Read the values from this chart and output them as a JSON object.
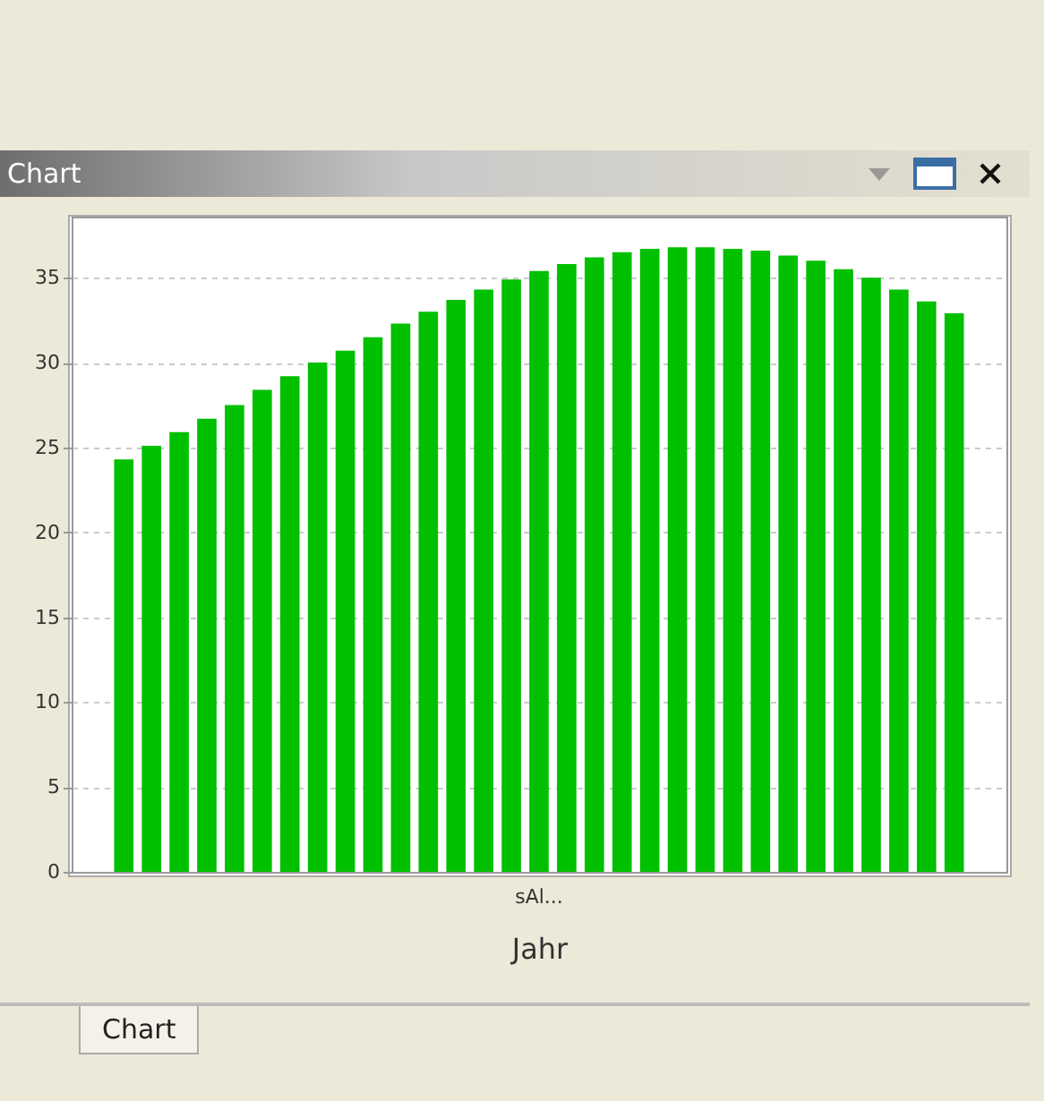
{
  "chart_data": {
    "type": "bar",
    "title": "Chart",
    "xlabel": "Jahr",
    "categories": [
      "sAl..."
    ],
    "series": [
      {
        "color": "#00c000",
        "values": [
          24.3
        ]
      },
      {
        "color": "#00c000",
        "values": [
          25.1
        ]
      },
      {
        "color": "#00c000",
        "values": [
          25.9
        ]
      },
      {
        "color": "#00c000",
        "values": [
          26.7
        ]
      },
      {
        "color": "#00c000",
        "values": [
          27.5
        ]
      },
      {
        "color": "#00c000",
        "values": [
          28.4
        ]
      },
      {
        "color": "#00c000",
        "values": [
          29.2
        ]
      },
      {
        "color": "#00c000",
        "values": [
          30.0
        ]
      },
      {
        "color": "#00c000",
        "values": [
          30.7
        ]
      },
      {
        "color": "#00c000",
        "values": [
          31.5
        ]
      },
      {
        "color": "#00c000",
        "values": [
          32.3
        ]
      },
      {
        "color": "#00c000",
        "values": [
          33.0
        ]
      },
      {
        "color": "#00c000",
        "values": [
          33.7
        ]
      },
      {
        "color": "#00c000",
        "values": [
          34.3
        ]
      },
      {
        "color": "#00c000",
        "values": [
          34.9
        ]
      },
      {
        "color": "#00c000",
        "values": [
          35.4
        ]
      },
      {
        "color": "#00c000",
        "values": [
          35.8
        ]
      },
      {
        "color": "#00c000",
        "values": [
          36.2
        ]
      },
      {
        "color": "#00c000",
        "values": [
          36.5
        ]
      },
      {
        "color": "#00c000",
        "values": [
          36.7
        ]
      },
      {
        "color": "#00c000",
        "values": [
          36.8
        ]
      },
      {
        "color": "#00c000",
        "values": [
          36.8
        ]
      },
      {
        "color": "#00c000",
        "values": [
          36.7
        ]
      },
      {
        "color": "#00c000",
        "values": [
          36.6
        ]
      },
      {
        "color": "#00c000",
        "values": [
          36.3
        ]
      },
      {
        "color": "#00c000",
        "values": [
          36.0
        ]
      },
      {
        "color": "#00c000",
        "values": [
          35.5
        ]
      },
      {
        "color": "#00c000",
        "values": [
          35.0
        ]
      },
      {
        "color": "#00c000",
        "values": [
          34.3
        ]
      },
      {
        "color": "#00c000",
        "values": [
          33.6
        ]
      },
      {
        "color": "#00c000",
        "values": [
          32.9
        ]
      }
    ],
    "ylim": [
      0,
      38.6
    ],
    "yticks": [
      0,
      5,
      10,
      15,
      20,
      25,
      30,
      35
    ],
    "grid": "y",
    "annotations": [
      "Chart"
    ]
  }
}
